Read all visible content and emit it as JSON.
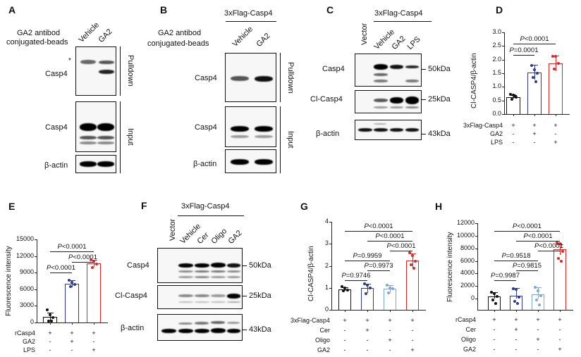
{
  "panels": {
    "A": {
      "label": "A",
      "beads_label_1": "GA2 antibod",
      "beads_label_2": "conjugated-beads",
      "lanes": [
        "Vehicle",
        "GA2"
      ],
      "asterisk": "*",
      "rows": [
        "Casp4",
        "Casp4",
        "β-actin"
      ],
      "sections": [
        "Pulldown",
        "Input"
      ]
    },
    "B": {
      "label": "B",
      "header": "3xFlag-Casp4",
      "beads_label_1": "GA2 antibod",
      "beads_label_2": "conjugated-beads",
      "lanes": [
        "Vehicle",
        "GA2"
      ],
      "rows": [
        "Casp4",
        "Casp4",
        "β-actin"
      ],
      "sections": [
        "Pulldown",
        "Input"
      ]
    },
    "C": {
      "label": "C",
      "header": "3xFlag-Casp4",
      "lanes": [
        "Vector",
        "Vehicle",
        "GA2",
        "LPS"
      ],
      "rows": [
        "Casp4",
        "Cl-Casp4",
        "β-actin"
      ],
      "markers": [
        "50kDa",
        "25kDa",
        "43kDa"
      ]
    },
    "D": {
      "label": "D"
    },
    "E": {
      "label": "E"
    },
    "F": {
      "label": "F",
      "header": "3xFlag-Casp4",
      "lanes": [
        "Vector",
        "Vehicle",
        "Cer",
        "Oligo",
        "GA2"
      ],
      "rows": [
        "Casp4",
        "Cl-Casp4",
        "β-actin"
      ],
      "markers": [
        "50kDa",
        "25kDa",
        "43kDa"
      ]
    },
    "G": {
      "label": "G"
    },
    "H": {
      "label": "H"
    }
  },
  "chart_data": [
    {
      "panel": "D",
      "type": "bar",
      "ylabel": "Cl-CASP4/β-actin",
      "ylim": [
        0,
        3.0
      ],
      "yticks": [
        "0.0",
        "0.5",
        "1.0",
        "1.5",
        "2.0",
        "2.5",
        "3.0"
      ],
      "categories": [
        "Vehicle",
        "GA2",
        "LPS"
      ],
      "values": [
        0.63,
        1.53,
        1.87
      ],
      "errors": [
        0.06,
        0.27,
        0.28
      ],
      "colors": [
        "#111111",
        "#2e3a8c",
        "#d62a2a"
      ],
      "points": [
        [
          0.72,
          0.7,
          0.62,
          0.55,
          0.68
        ],
        [
          1.78,
          1.62,
          1.5,
          1.35,
          1.18
        ],
        [
          2.13,
          2.12,
          1.85,
          1.65
        ]
      ],
      "conditions": [
        {
          "name": "3xFlag-Casp4",
          "values": [
            "+",
            "+",
            "+"
          ]
        },
        {
          "name": "GA2",
          "values": [
            "-",
            "+",
            "-"
          ]
        },
        {
          "name": "LPS",
          "values": [
            "-",
            "-",
            "+"
          ]
        }
      ],
      "comparisons": [
        {
          "from": 0,
          "to": 1,
          "text_p": "P",
          "text_rest": "=0.0001",
          "level": 1
        },
        {
          "from": 0,
          "to": 2,
          "text_p": "P",
          "text_rest": "<0.0001",
          "level": 2
        }
      ]
    },
    {
      "panel": "E",
      "type": "bar",
      "ylabel": "Fluorescence intensity",
      "ylim": [
        0,
        15000
      ],
      "yticks": [
        "0",
        "3000",
        "6000",
        "9000",
        "12000",
        "15000"
      ],
      "categories": [
        "rCasp4",
        "rCasp4+GA2",
        "rCasp4+LPS"
      ],
      "values": [
        1000,
        7000,
        10700
      ],
      "errors": [
        800,
        600,
        600
      ],
      "colors": [
        "#111111",
        "#2e3a8c",
        "#d62a2a"
      ],
      "points": [
        [
          2300,
          1400,
          900,
          300,
          200
        ],
        [
          7600,
          7200,
          6900,
          6500
        ],
        [
          11300,
          11000,
          10600,
          9900
        ]
      ],
      "conditions": [
        {
          "name": "rCasp4",
          "values": [
            "+",
            "+",
            "+"
          ]
        },
        {
          "name": "GA2",
          "values": [
            "-",
            "+",
            "-"
          ]
        },
        {
          "name": "LPS",
          "values": [
            "-",
            "-",
            "+"
          ]
        }
      ],
      "comparisons": [
        {
          "from": 0,
          "to": 1,
          "text_p": "P",
          "text_rest": "<0.0001",
          "level": 1
        },
        {
          "from": 1,
          "to": 2,
          "text_p": "P",
          "text_rest": "<0.0001",
          "level": 2
        },
        {
          "from": 0,
          "to": 2,
          "text_p": "P",
          "text_rest": "<0.0001",
          "level": 3
        }
      ]
    },
    {
      "panel": "G",
      "type": "bar",
      "ylabel": "Cl-CASP4/β-actin",
      "ylim": [
        0,
        4
      ],
      "yticks": [
        "0",
        "1",
        "2",
        "3",
        "4"
      ],
      "categories": [
        "Vehicle",
        "Cer",
        "Oligo",
        "GA2"
      ],
      "values": [
        0.93,
        0.98,
        0.95,
        2.25
      ],
      "errors": [
        0.08,
        0.2,
        0.18,
        0.32
      ],
      "colors": [
        "#111111",
        "#2e3a8c",
        "#7fa6d8",
        "#d62a2a"
      ],
      "points": [
        [
          1.05,
          0.98,
          0.9,
          0.88
        ],
        [
          1.2,
          1.12,
          1.0,
          0.75
        ],
        [
          1.12,
          1.0,
          0.95,
          0.78
        ],
        [
          2.6,
          2.45,
          2.2,
          2.05,
          1.9
        ]
      ],
      "conditions": [
        {
          "name": "3xFlag-Casp4",
          "values": [
            "+",
            "+",
            "+",
            "+"
          ]
        },
        {
          "name": "Cer",
          "values": [
            "-",
            "+",
            "-",
            "-"
          ]
        },
        {
          "name": "Oligo",
          "values": [
            "-",
            "-",
            "+",
            "-"
          ]
        },
        {
          "name": "GA2",
          "values": [
            "-",
            "-",
            "-",
            "+"
          ]
        }
      ],
      "comparisons": [
        {
          "from": 0,
          "to": 1,
          "text_p": "P",
          "text_rest": "=0.9746",
          "level": 1
        },
        {
          "from": 1,
          "to": 2,
          "text_p": "P",
          "text_rest": "=0.9973",
          "level": 2
        },
        {
          "from": 0,
          "to": 2,
          "text_p": "P",
          "text_rest": "=0.9959",
          "level": 3
        },
        {
          "from": 2,
          "to": 3,
          "text_p": "P",
          "text_rest": "<0.0001",
          "level": 4
        },
        {
          "from": 1,
          "to": 3,
          "text_p": "P",
          "text_rest": "<0.0001",
          "level": 5
        },
        {
          "from": 0,
          "to": 3,
          "text_p": "P",
          "text_rest": "<0.0001",
          "level": 6
        }
      ]
    },
    {
      "panel": "H",
      "type": "bar",
      "ylabel": "Fluorescence intensity",
      "ylim": [
        -1500,
        12000
      ],
      "yticks": [
        "0",
        "2000",
        "4000",
        "6000",
        "8000",
        "10000",
        "12000"
      ],
      "categories": [
        "rCasp4",
        "rCasp4+Cer",
        "rCasp4+Oligo",
        "rCasp4+GA2"
      ],
      "values": [
        300,
        450,
        650,
        7800
      ],
      "errors": [
        700,
        1200,
        1200,
        800
      ],
      "colors": [
        "#111111",
        "#2e3a8c",
        "#7fa6d8",
        "#d62a2a"
      ],
      "points": [
        [
          1000,
          800,
          300,
          -200,
          -800
        ],
        [
          1600,
          1500,
          200,
          -400,
          -800
        ],
        [
          1800,
          1200,
          500,
          -200,
          -1000
        ],
        [
          8900,
          8800,
          7500,
          6400,
          6000
        ]
      ],
      "conditions": [
        {
          "name": "rCasp4",
          "values": [
            "+",
            "+",
            "+",
            "+"
          ]
        },
        {
          "name": "Cer",
          "values": [
            "-",
            "+",
            "-",
            "-"
          ]
        },
        {
          "name": "Oligo",
          "values": [
            "-",
            "-",
            "+",
            "-"
          ]
        },
        {
          "name": "GA2",
          "values": [
            "-",
            "-",
            "-",
            "+"
          ]
        }
      ],
      "comparisons": [
        {
          "from": 0,
          "to": 1,
          "text_p": "P",
          "text_rest": "=0.9987",
          "level": 1
        },
        {
          "from": 1,
          "to": 2,
          "text_p": "P",
          "text_rest": "=0.9815",
          "level": 2
        },
        {
          "from": 0,
          "to": 2,
          "text_p": "P",
          "text_rest": "=0.9518",
          "level": 3
        },
        {
          "from": 2,
          "to": 3,
          "text_p": "P",
          "text_rest": "<0.0001",
          "level": 4
        },
        {
          "from": 1,
          "to": 3,
          "text_p": "P",
          "text_rest": "<0.0001",
          "level": 5
        },
        {
          "from": 0,
          "to": 3,
          "text_p": "P",
          "text_rest": "<0.0001",
          "level": 6
        }
      ]
    }
  ]
}
